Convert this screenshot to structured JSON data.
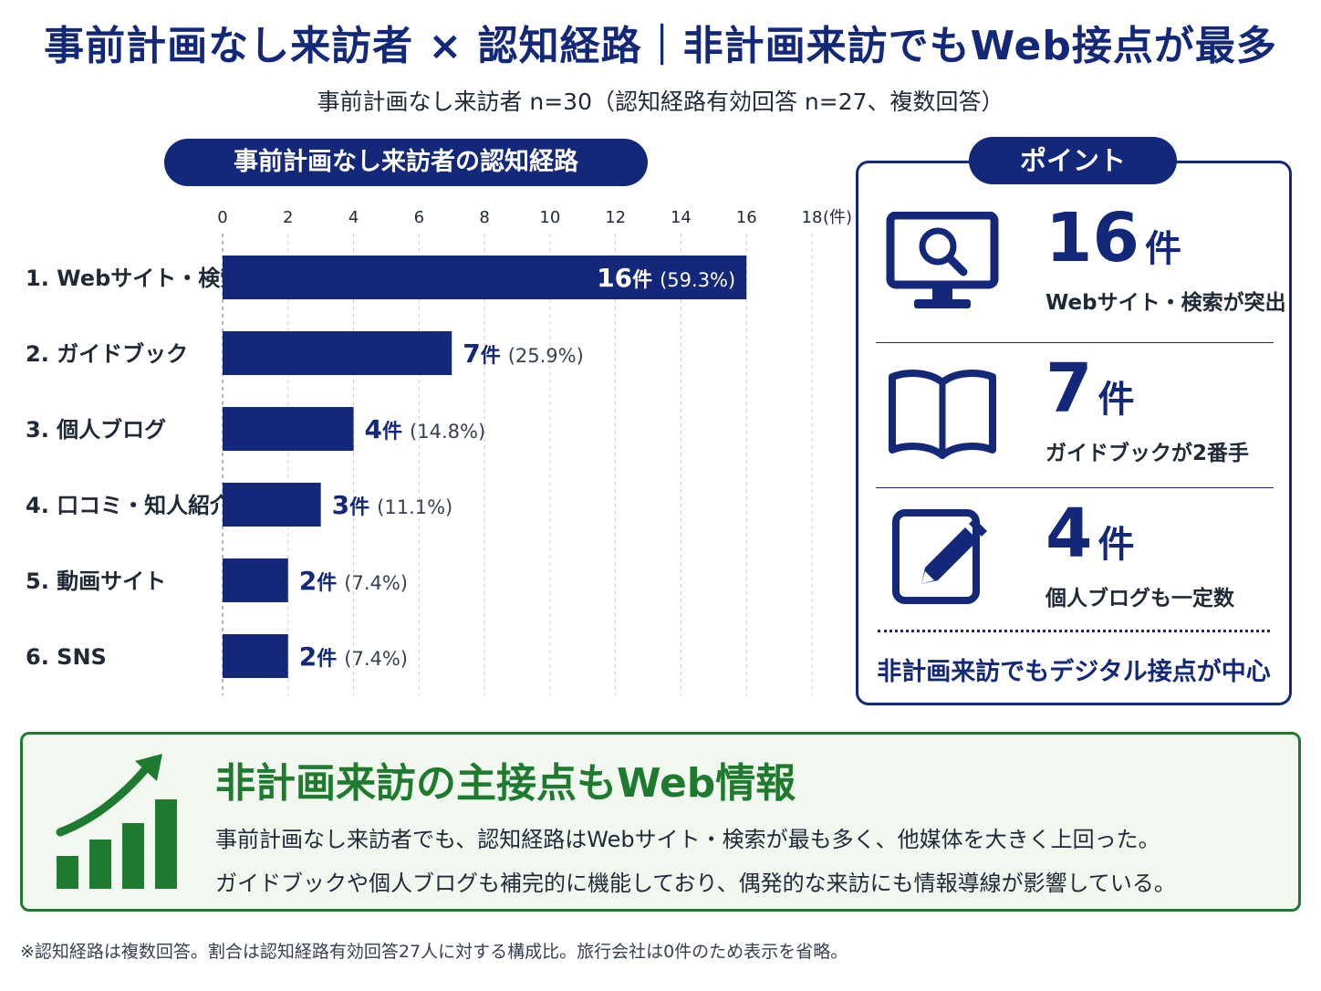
{
  "title": "事前計画なし来訪者 × 認知経路｜非計画来訪でもWeb接点が最多",
  "subtitle": "事前計画なし来訪者 n=30（認知経路有効回答 n=27、複数回答）",
  "chart_header": "事前計画なし来訪者の認知経路",
  "chart_data": {
    "type": "bar",
    "orientation": "horizontal",
    "title": "事前計画なし来訪者の認知経路",
    "categories": [
      "1. Webサイト・検索",
      "2. ガイドブック",
      "3. 個人ブログ",
      "4. 口コミ・知人紹介",
      "5. 動画サイト",
      "6. SNS"
    ],
    "values": [
      16,
      7,
      4,
      3,
      2,
      2
    ],
    "percents": [
      "(59.3%)",
      "(25.9%)",
      "(14.8%)",
      "(11.1%)",
      "(7.4%)",
      "(7.4%)"
    ],
    "value_unit": "件",
    "xlim": [
      0,
      18
    ],
    "xticks": [
      "0",
      "2",
      "4",
      "6",
      "8",
      "10",
      "12",
      "14",
      "16",
      "18"
    ],
    "axis_unit": "(件)",
    "bar_color": "#14287a",
    "grid": true
  },
  "points": {
    "header": "ポイント",
    "unit": "件",
    "items": [
      {
        "number": "16",
        "desc": "Webサイト・検索が突出",
        "icon": "monitor-search-icon"
      },
      {
        "number": "7",
        "desc": "ガイドブックが2番手",
        "icon": "open-book-icon"
      },
      {
        "number": "4",
        "desc": "個人ブログも一定数",
        "icon": "pencil-edit-icon"
      }
    ],
    "footer": "非計画来訪でもデジタル接点が中心"
  },
  "summary": {
    "title": "非計画来訪の主接点もWeb情報",
    "line1": "事前計画なし来訪者でも、認知経路はWebサイト・検索が最も多く、他媒体を大きく上回った。",
    "line2": "ガイドブックや個人ブログも補完的に機能しており、偶発的な来訪にも情報導線が影響している。",
    "icon": "growth-chart-icon"
  },
  "footnote": "※認知経路は複数回答。割合は認知経路有効回答27人に対する構成比。旅行会社は0件のため表示を省略。",
  "colors": {
    "navy": "#14287a",
    "green": "#1d7a2e",
    "summary_bg": "#f2f8ef"
  }
}
